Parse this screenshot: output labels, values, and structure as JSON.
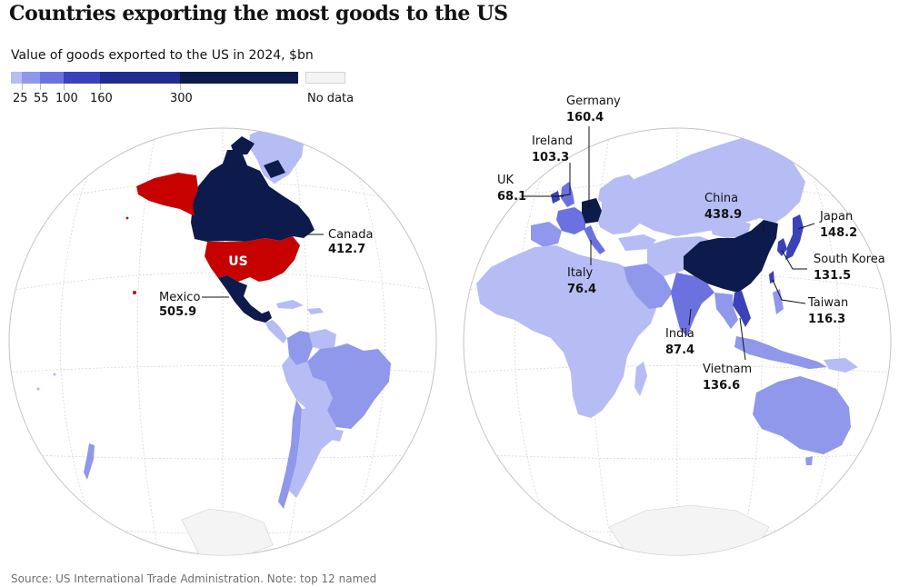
{
  "title": "Countries exporting the most goods to the US",
  "subtitle": "Value of goods exported to the US in 2024, $bn",
  "legend": {
    "colors": [
      "#b6bcf4",
      "#8f98ea",
      "#6b72e0",
      "#3b42b9",
      "#222b8f",
      "#0d1a4c"
    ],
    "breaks": [
      "25",
      "55",
      "100",
      "160",
      "300"
    ],
    "no_data_label": "No data",
    "no_data_color": "#f4f4f4"
  },
  "us_label": "US",
  "us_color": "#c70000",
  "countries": [
    {
      "name": "Canada",
      "value": "412.7"
    },
    {
      "name": "Mexico",
      "value": "505.9"
    },
    {
      "name": "Germany",
      "value": "160.4"
    },
    {
      "name": "Ireland",
      "value": "103.3"
    },
    {
      "name": "UK",
      "value": "68.1"
    },
    {
      "name": "Italy",
      "value": "76.4"
    },
    {
      "name": "China",
      "value": "438.9"
    },
    {
      "name": "Japan",
      "value": "148.2"
    },
    {
      "name": "South Korea",
      "value": "131.5"
    },
    {
      "name": "Taiwan",
      "value": "116.3"
    },
    {
      "name": "India",
      "value": "87.4"
    },
    {
      "name": "Vietnam",
      "value": "136.6"
    }
  ],
  "source": "Source: US International Trade Administration. Note: top 12 named"
}
